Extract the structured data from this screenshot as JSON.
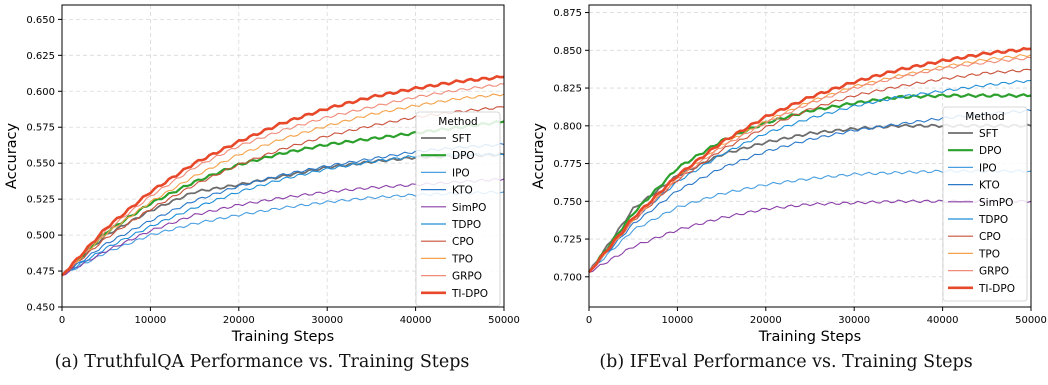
{
  "chart_data": [
    {
      "type": "line",
      "caption": "(a) TruthfulQA Performance vs. Training Steps",
      "xlabel": "Training Steps",
      "ylabel": "Accuracy",
      "xlim": [
        0,
        50000
      ],
      "ylim": [
        0.45,
        0.66
      ],
      "xticks": [
        "0",
        "10000",
        "20000",
        "30000",
        "40000",
        "50000"
      ],
      "yticks": [
        "0.450",
        "0.475",
        "0.500",
        "0.525",
        "0.550",
        "0.575",
        "0.600",
        "0.625",
        "0.650"
      ],
      "grid": true,
      "legend": {
        "title": "Method",
        "placement": "center-right"
      },
      "x": [
        0,
        5000,
        10000,
        15000,
        20000,
        25000,
        30000,
        35000,
        40000,
        45000,
        50000
      ],
      "series": [
        {
          "name": "SFT",
          "color": "#6d6d6d",
          "values": [
            0.472,
            0.5,
            0.517,
            0.53,
            0.535,
            0.541,
            0.547,
            0.551,
            0.554,
            0.555,
            0.556
          ]
        },
        {
          "name": "DPO",
          "color": "#2ca02c",
          "values": [
            0.472,
            0.502,
            0.522,
            0.537,
            0.549,
            0.557,
            0.563,
            0.567,
            0.571,
            0.575,
            0.579
          ]
        },
        {
          "name": "IPO",
          "color": "#4a9fe0",
          "values": [
            0.472,
            0.488,
            0.5,
            0.508,
            0.514,
            0.519,
            0.523,
            0.526,
            0.528,
            0.529,
            0.53
          ]
        },
        {
          "name": "KTO",
          "color": "#2a78c8",
          "values": [
            0.472,
            0.494,
            0.51,
            0.524,
            0.534,
            0.542,
            0.548,
            0.553,
            0.558,
            0.561,
            0.563
          ]
        },
        {
          "name": "SimPO",
          "color": "#8a3fa8",
          "values": [
            0.472,
            0.489,
            0.503,
            0.514,
            0.521,
            0.526,
            0.53,
            0.533,
            0.535,
            0.537,
            0.539
          ]
        },
        {
          "name": "TDPO",
          "color": "#1f8fd6",
          "values": [
            0.472,
            0.491,
            0.506,
            0.519,
            0.53,
            0.539,
            0.546,
            0.551,
            0.555,
            0.556,
            0.556
          ]
        },
        {
          "name": "CPO",
          "color": "#c9513a",
          "values": [
            0.472,
            0.498,
            0.518,
            0.535,
            0.549,
            0.56,
            0.569,
            0.576,
            0.582,
            0.586,
            0.589
          ]
        },
        {
          "name": "TPO",
          "color": "#f5a24a",
          "values": [
            0.472,
            0.501,
            0.523,
            0.541,
            0.556,
            0.567,
            0.576,
            0.584,
            0.59,
            0.595,
            0.598
          ]
        },
        {
          "name": "GRPO",
          "color": "#f08b78",
          "values": [
            0.472,
            0.503,
            0.527,
            0.547,
            0.562,
            0.573,
            0.582,
            0.589,
            0.596,
            0.601,
            0.605
          ]
        },
        {
          "name": "TI-DPO",
          "color": "#e8482a",
          "values": [
            0.472,
            0.505,
            0.53,
            0.55,
            0.565,
            0.578,
            0.588,
            0.596,
            0.602,
            0.607,
            0.61
          ]
        }
      ]
    },
    {
      "type": "line",
      "caption": "(b) IFEval Performance vs. Training Steps",
      "xlabel": "Training Steps",
      "ylabel": "Accuracy",
      "xlim": [
        0,
        50000
      ],
      "ylim": [
        0.68,
        0.88
      ],
      "xticks": [
        "0",
        "10000",
        "20000",
        "30000",
        "40000",
        "50000"
      ],
      "yticks": [
        "0.700",
        "0.725",
        "0.750",
        "0.775",
        "0.800",
        "0.825",
        "0.850",
        "0.875"
      ],
      "grid": true,
      "legend": {
        "title": "Method",
        "placement": "center-right"
      },
      "x": [
        0,
        5000,
        10000,
        15000,
        20000,
        25000,
        30000,
        35000,
        40000,
        45000,
        50000
      ],
      "series": [
        {
          "name": "SFT",
          "color": "#6d6d6d",
          "values": [
            0.703,
            0.745,
            0.767,
            0.781,
            0.789,
            0.795,
            0.798,
            0.8,
            0.8,
            0.8,
            0.8
          ]
        },
        {
          "name": "DPO",
          "color": "#2ca02c",
          "values": [
            0.703,
            0.742,
            0.772,
            0.79,
            0.802,
            0.81,
            0.815,
            0.819,
            0.82,
            0.82,
            0.82
          ]
        },
        {
          "name": "IPO",
          "color": "#4a9fe0",
          "values": [
            0.703,
            0.731,
            0.746,
            0.755,
            0.761,
            0.765,
            0.768,
            0.769,
            0.77,
            0.77,
            0.77
          ]
        },
        {
          "name": "KTO",
          "color": "#2a78c8",
          "values": [
            0.703,
            0.735,
            0.757,
            0.772,
            0.783,
            0.791,
            0.797,
            0.801,
            0.805,
            0.808,
            0.81
          ]
        },
        {
          "name": "SimPO",
          "color": "#8a3fa8",
          "values": [
            0.703,
            0.72,
            0.731,
            0.739,
            0.745,
            0.748,
            0.749,
            0.75,
            0.75,
            0.75,
            0.75
          ]
        },
        {
          "name": "TDPO",
          "color": "#1f8fd6",
          "values": [
            0.703,
            0.738,
            0.763,
            0.781,
            0.795,
            0.805,
            0.813,
            0.819,
            0.823,
            0.827,
            0.83
          ]
        },
        {
          "name": "CPO",
          "color": "#c9513a",
          "values": [
            0.703,
            0.737,
            0.764,
            0.784,
            0.799,
            0.811,
            0.82,
            0.826,
            0.831,
            0.835,
            0.837
          ]
        },
        {
          "name": "TPO",
          "color": "#f5a24a",
          "values": [
            0.703,
            0.738,
            0.766,
            0.787,
            0.803,
            0.816,
            0.826,
            0.833,
            0.839,
            0.844,
            0.847
          ]
        },
        {
          "name": "GRPO",
          "color": "#f08b78",
          "values": [
            0.703,
            0.738,
            0.765,
            0.786,
            0.802,
            0.815,
            0.825,
            0.832,
            0.838,
            0.842,
            0.845
          ]
        },
        {
          "name": "TI-DPO",
          "color": "#e8482a",
          "values": [
            0.703,
            0.739,
            0.767,
            0.789,
            0.806,
            0.819,
            0.829,
            0.837,
            0.843,
            0.848,
            0.851
          ]
        }
      ]
    }
  ]
}
